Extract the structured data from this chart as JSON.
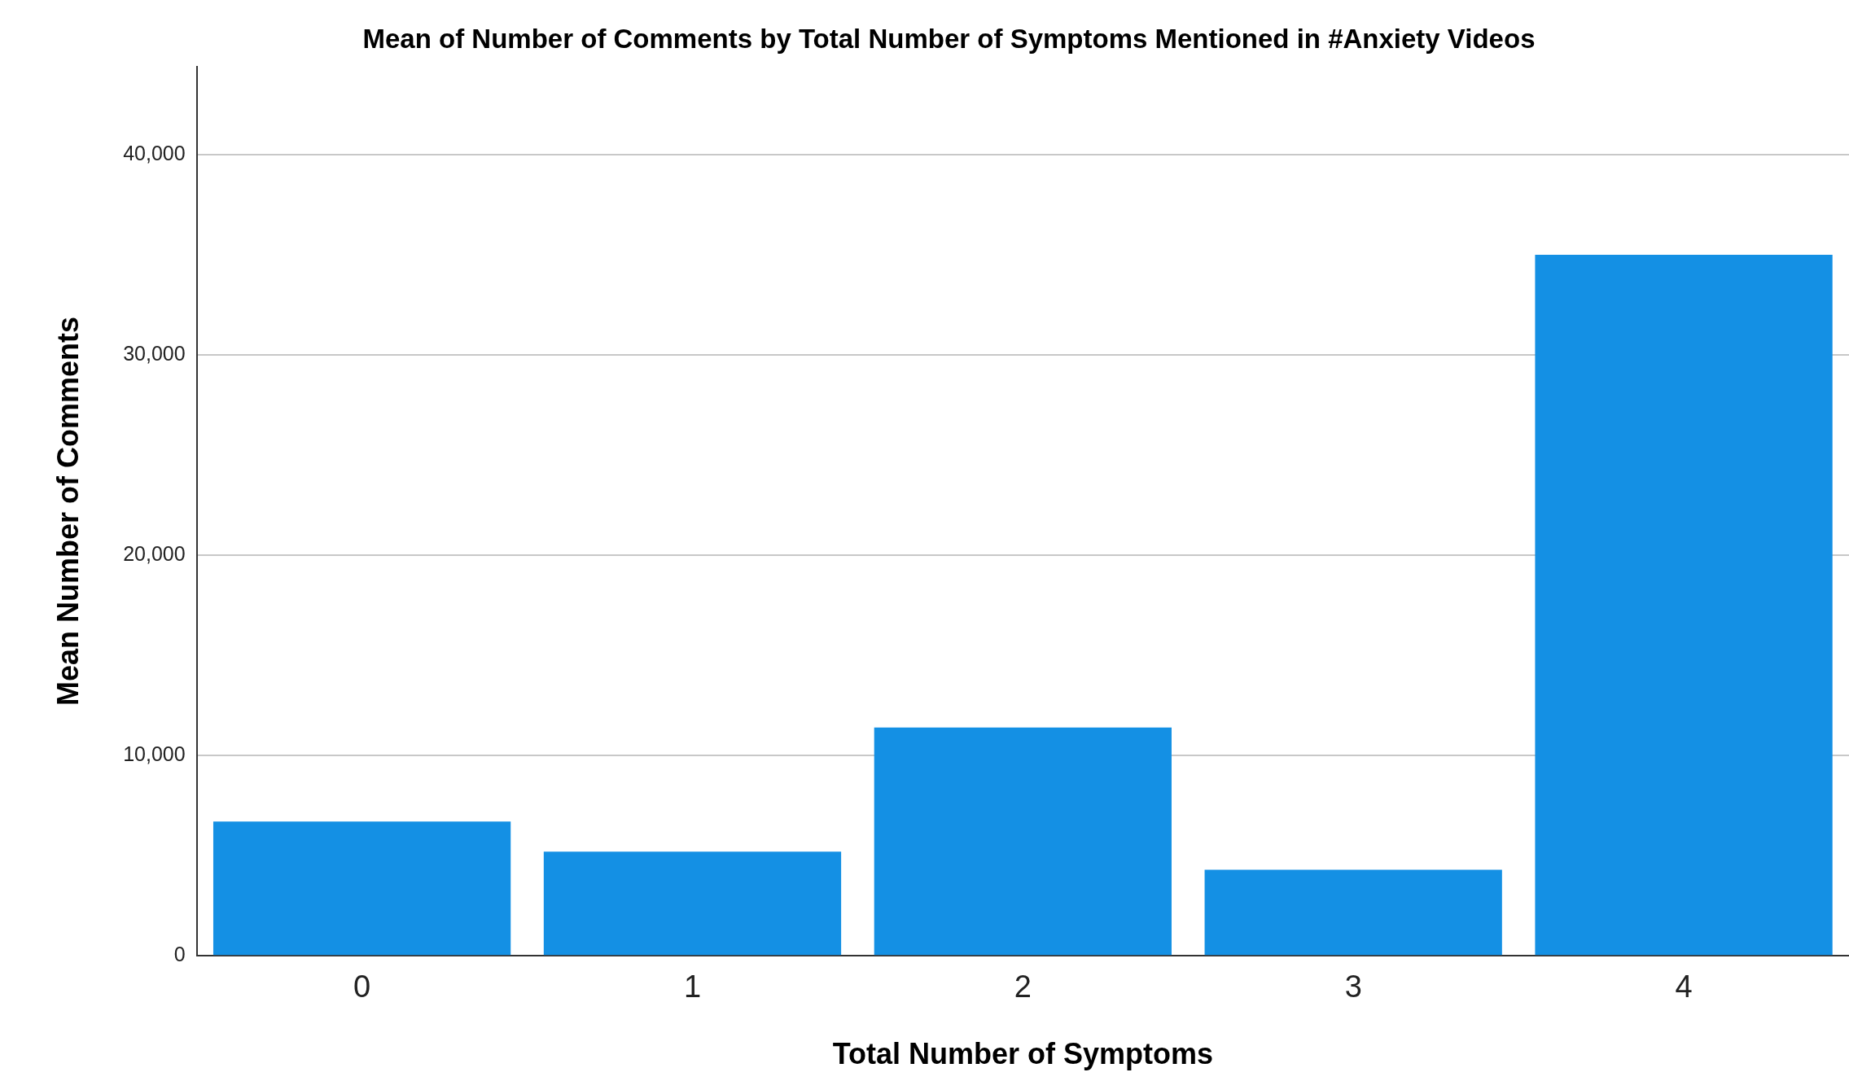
{
  "chart_data": {
    "type": "bar",
    "title": "Mean of Number of Comments by Total Number of Symptoms Mentioned in #Anxiety Videos",
    "xlabel": "Total Number of Symptoms",
    "ylabel": "Mean Number of Comments",
    "categories": [
      "0",
      "1",
      "2",
      "3",
      "4"
    ],
    "values": [
      6700,
      5200,
      11400,
      4300,
      35000
    ],
    "color": "#1490e4",
    "ylim": [
      0,
      44400
    ],
    "yticks": [
      {
        "value": 0,
        "label": "0"
      },
      {
        "value": 10000,
        "label": "10,000"
      },
      {
        "value": 20000,
        "label": "20,000"
      },
      {
        "value": 30000,
        "label": "30,000"
      },
      {
        "value": 40000,
        "label": "40,000"
      }
    ],
    "grid": "y"
  }
}
